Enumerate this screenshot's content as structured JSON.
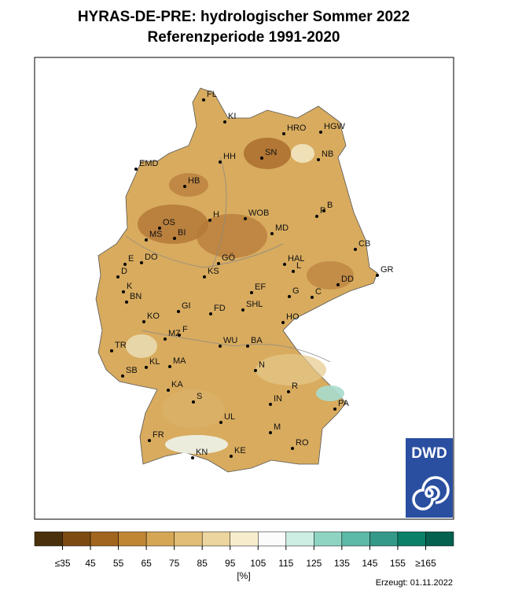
{
  "title": [
    "HYRAS-DE-PRE: hydrologischer Sommer 2022",
    "Referenzperiode 1991-2020"
  ],
  "cities": [
    "FL",
    "KI",
    "HRO",
    "HGW",
    "SN",
    "HH",
    "NB",
    "EMD",
    "HB",
    "B",
    "P",
    "WOB",
    "H",
    "OS",
    "MD",
    "MS",
    "BI",
    "CB",
    "E",
    "DO",
    "GÖ",
    "HAL",
    "L",
    "GR",
    "D",
    "KS",
    "DD",
    "K",
    "EF",
    "G",
    "C",
    "BN",
    "GI",
    "FD",
    "SHL",
    "KO",
    "HO",
    "MZ",
    "F",
    "TR",
    "WU",
    "BA",
    "SB",
    "KL",
    "MA",
    "N",
    "KA",
    "R",
    "S",
    "IN",
    "PA",
    "UL",
    "M",
    "FR",
    "RO",
    "KN",
    "KE"
  ],
  "legend": {
    "colors": [
      "#4b300c",
      "#7d4b12",
      "#a2651f",
      "#c08634",
      "#d5a755",
      "#e1bd76",
      "#ecd59e",
      "#f7edcc",
      "#fbfbfb",
      "#cdeee3",
      "#8fd4c2",
      "#5db9a8",
      "#35998a",
      "#0a8068",
      "#04604f"
    ],
    "ticks": [
      {
        "value": 35,
        "label": "≤35"
      },
      45,
      55,
      65,
      75,
      85,
      95,
      105,
      115,
      125,
      135,
      145,
      155,
      {
        "value": 165,
        "label": "≥165"
      }
    ],
    "unit": "[%]"
  },
  "created": "Erzeugt: 01.11.2022",
  "logo": "DWD"
}
